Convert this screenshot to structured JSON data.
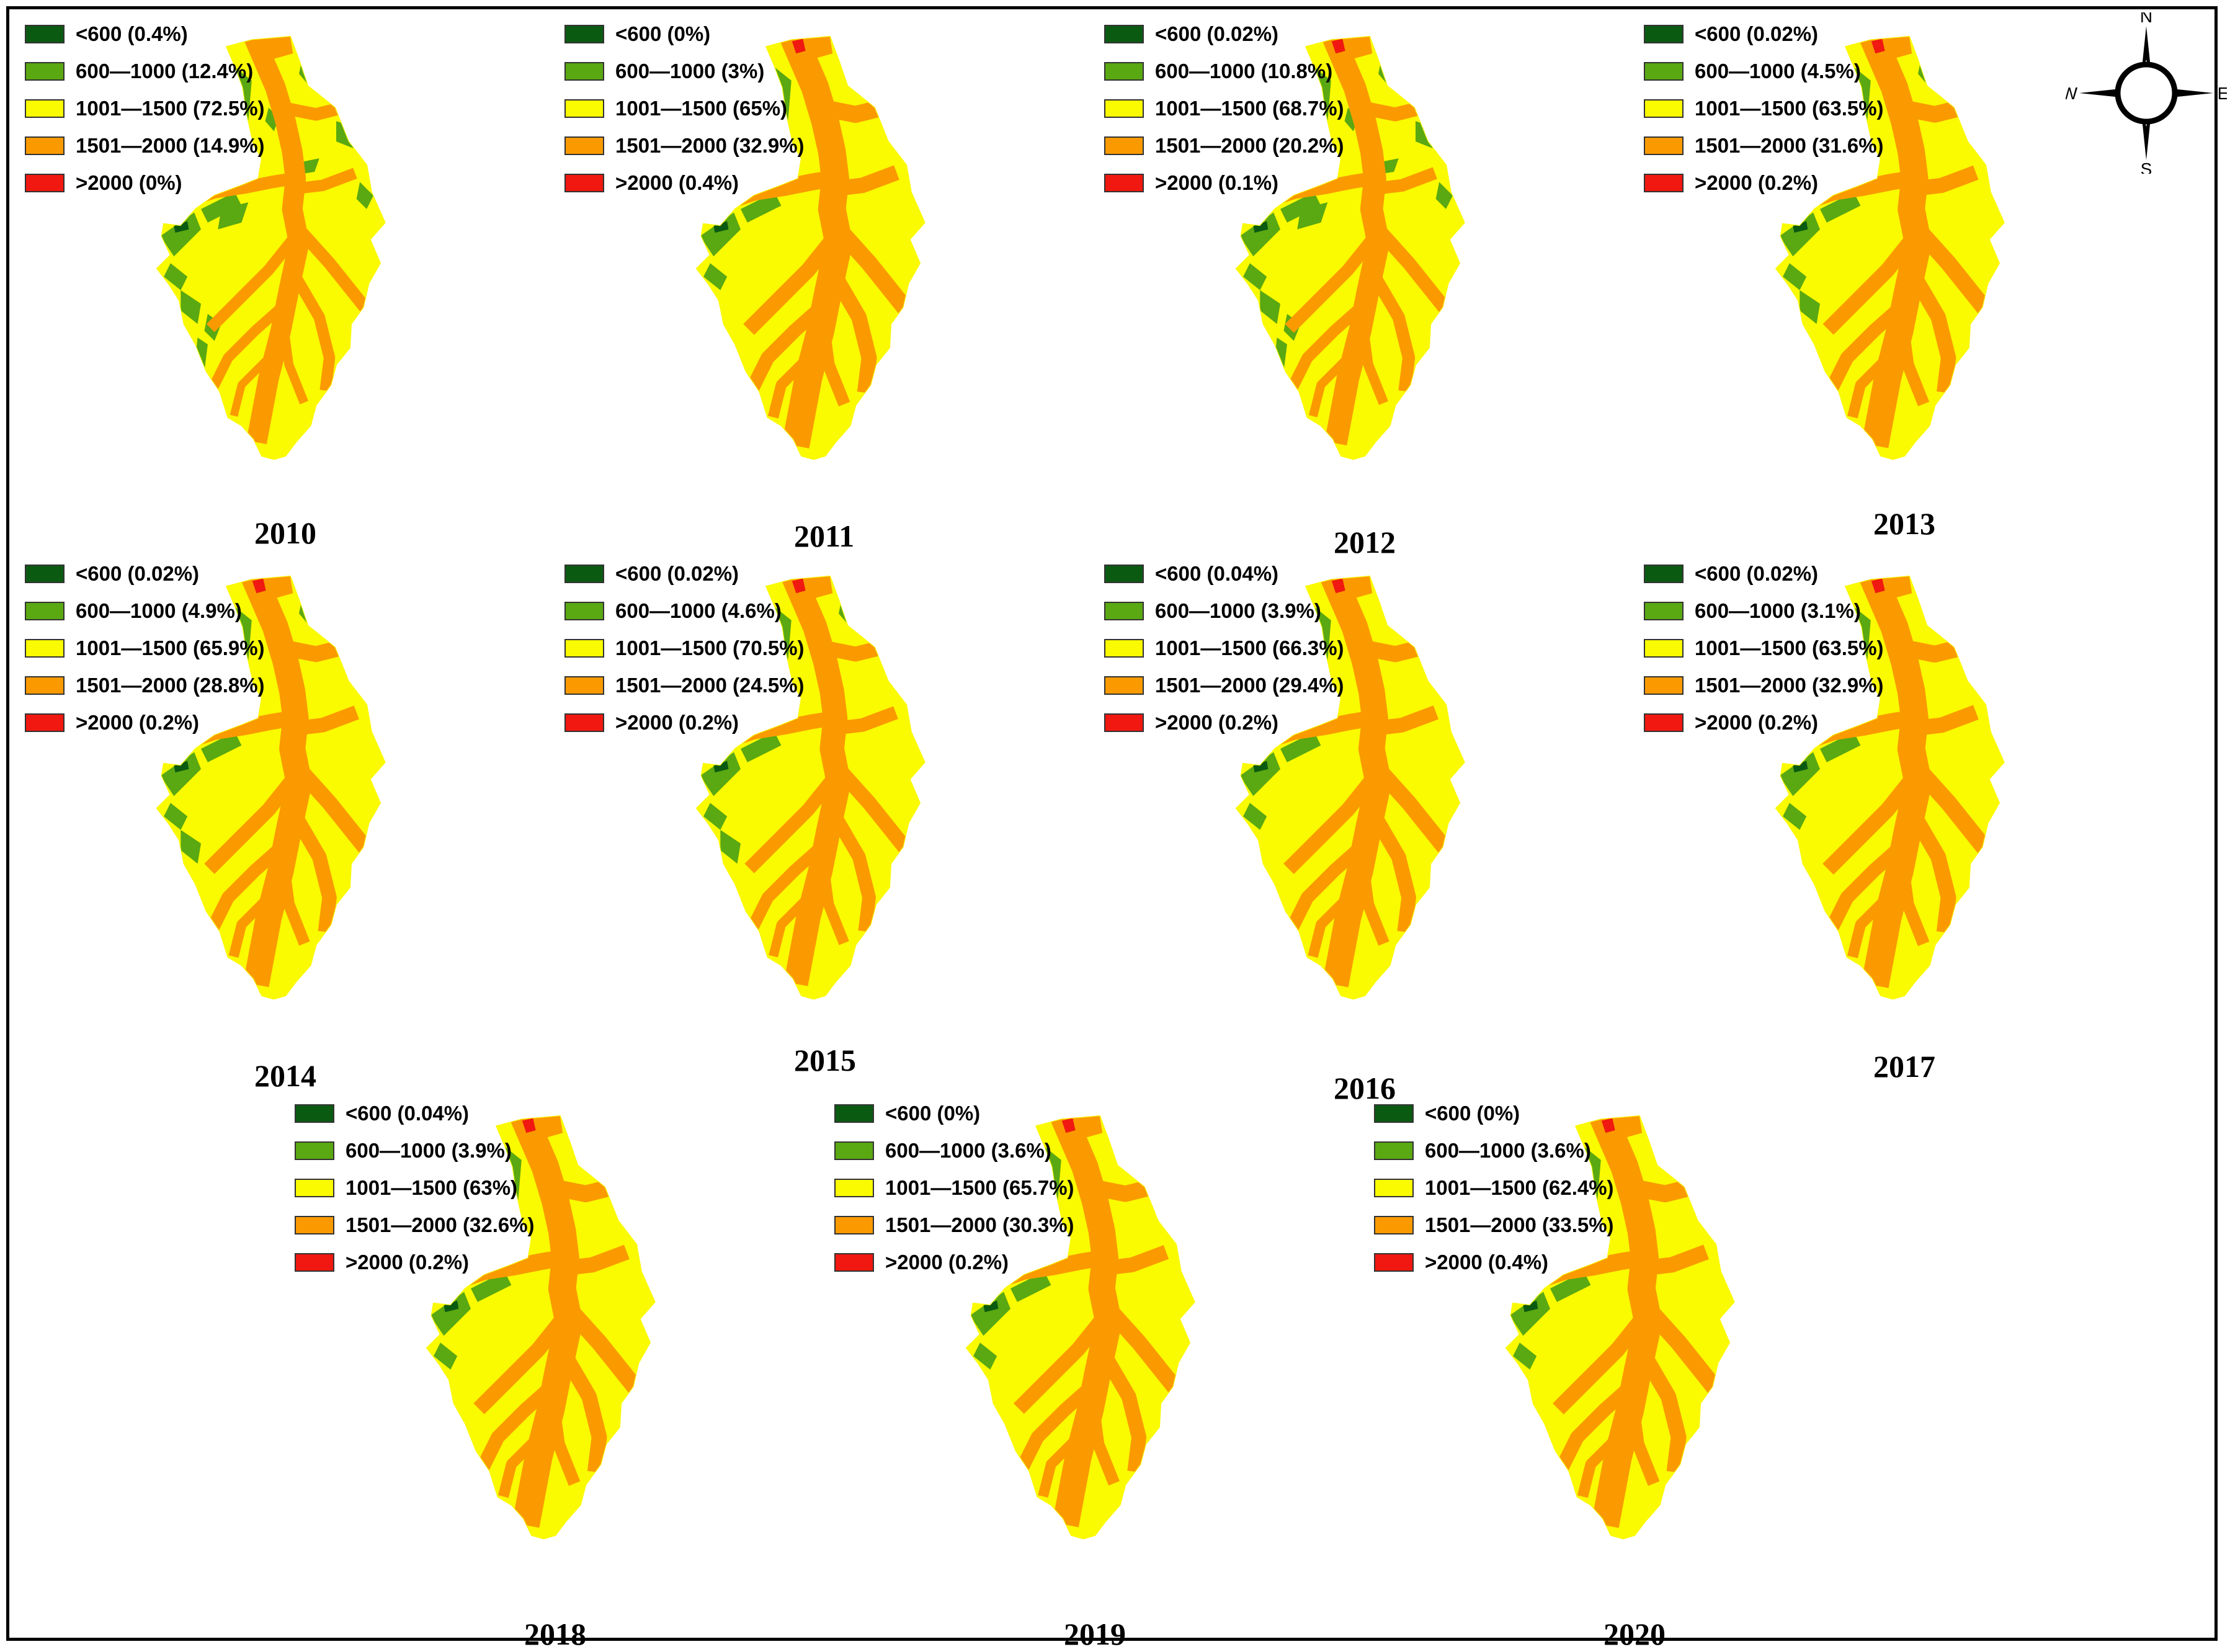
{
  "classes": [
    {
      "range": "<600",
      "color": "#0b5a12"
    },
    {
      "range": "600—1000",
      "color": "#5aa812"
    },
    {
      "range": "1001—1500",
      "color": "#fafa00"
    },
    {
      "range": "1501—2000",
      "color": "#fa9a00"
    },
    {
      "range": ">2000",
      "color": "#f01810"
    }
  ],
  "compass": {
    "n": "N",
    "s": "S",
    "e": "E",
    "w": "W"
  },
  "maps": [
    {
      "year": "2010",
      "legend": [
        "<600 (0.4%)",
        "600—1000 (12.4%)",
        "1001—1500 (72.5%)",
        "1501—2000 (14.9%)",
        ">2000 (0%)"
      ]
    },
    {
      "year": "2011",
      "legend": [
        "<600 (0%)",
        "600—1000 (3%)",
        "1001—1500 (65%)",
        "1501—2000 (32.9%)",
        ">2000 (0.4%)"
      ]
    },
    {
      "year": "2012",
      "legend": [
        "<600 (0.02%)",
        "600—1000 (10.8%)",
        "1001—1500 (68.7%)",
        "1501—2000 (20.2%)",
        ">2000 (0.1%)"
      ]
    },
    {
      "year": "2013",
      "legend": [
        "<600 (0.02%)",
        "600—1000 (4.5%)",
        "1001—1500 (63.5%)",
        "1501—2000 (31.6%)",
        ">2000 (0.2%)"
      ]
    },
    {
      "year": "2014",
      "legend": [
        "<600 (0.02%)",
        "600—1000 (4.9%)",
        "1001—1500 (65.9%)",
        "1501—2000 (28.8%)",
        ">2000 (0.2%)"
      ]
    },
    {
      "year": "2015",
      "legend": [
        "<600 (0.02%)",
        "600—1000 (4.6%)",
        "1001—1500 (70.5%)",
        "1501—2000 (24.5%)",
        ">2000 (0.2%)"
      ]
    },
    {
      "year": "2016",
      "legend": [
        "<600 (0.04%)",
        "600—1000 (3.9%)",
        "1001—1500 (66.3%)",
        "1501—2000 (29.4%)",
        ">2000 (0.2%)"
      ]
    },
    {
      "year": "2017",
      "legend": [
        "<600 (0.02%)",
        "600—1000 (3.1%)",
        "1001—1500 (63.5%)",
        "1501—2000 (32.9%)",
        ">2000 (0.2%)"
      ]
    },
    {
      "year": "2018",
      "legend": [
        "<600 (0.04%)",
        "600—1000 (3.9%)",
        "1001—1500 (63%)",
        "1501—2000 (32.6%)",
        ">2000 (0.2%)"
      ]
    },
    {
      "year": "2019",
      "legend": [
        "<600 (0%)",
        "600—1000 (3.6%)",
        "1001—1500 (65.7%)",
        "1501—2000 (30.3%)",
        ">2000 (0.2%)"
      ]
    },
    {
      "year": "2020",
      "legend": [
        "<600 (0%)",
        "600—1000 (3.6%)",
        "1001—1500 (62.4%)",
        "1501—2000 (33.5%)",
        ">2000 (0.4%)"
      ]
    }
  ]
}
